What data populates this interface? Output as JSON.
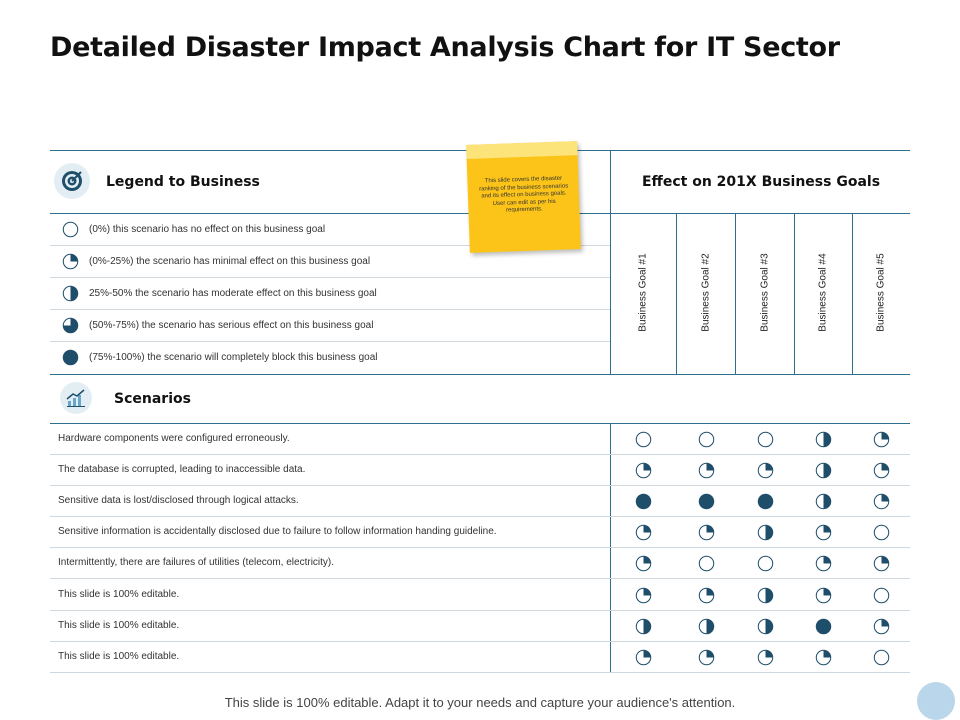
{
  "title": "Detailed Disaster Impact Analysis Chart for IT Sector",
  "legend": {
    "title": "Legend to Business",
    "icon": "target-icon",
    "items": [
      {
        "level": 0,
        "text": "(0%) this scenario has no effect on this business goal"
      },
      {
        "level": 0.25,
        "text": "(0%-25%) the scenario has minimal effect on this business goal"
      },
      {
        "level": 0.5,
        "text": "25%-50% the scenario has moderate effect on this business goal"
      },
      {
        "level": 0.75,
        "text": "(50%-75%) the scenario has serious effect on this business goal"
      },
      {
        "level": 1,
        "text": "(75%-100%) the scenario will completely block this business goal"
      }
    ]
  },
  "effect": {
    "title": "Effect on 201X Business Goals",
    "goals": [
      "Business Goal #1",
      "Business Goal #2",
      "Business Goal #3",
      "Business Goal #4",
      "Business Goal #5"
    ]
  },
  "scenarios": {
    "title": "Scenarios",
    "icon": "growth-chart-icon",
    "rows": [
      {
        "text": "Hardware components were configured erroneously.",
        "levels": [
          0,
          0,
          0,
          0.5,
          0.25
        ]
      },
      {
        "text": "The database is corrupted, leading to inaccessible data.",
        "levels": [
          0.25,
          0.25,
          0.25,
          0.5,
          0.25
        ]
      },
      {
        "text": "Sensitive data is lost/disclosed through logical attacks.",
        "levels": [
          1,
          1,
          1,
          0.5,
          0.25
        ]
      },
      {
        "text": "Sensitive information is accidentally disclosed due to failure to follow information handing guideline.",
        "levels": [
          0.25,
          0.25,
          0.5,
          0.25,
          0
        ]
      },
      {
        "text": "Intermittently, there are failures of utilities (telecom, electricity).",
        "levels": [
          0.25,
          0,
          0,
          0.25,
          0.25
        ]
      },
      {
        "text": "This slide is 100% editable.",
        "levels": [
          0.25,
          0.25,
          0.5,
          0.25,
          0
        ]
      },
      {
        "text": "This slide is 100% editable.",
        "levels": [
          0.5,
          0.5,
          0.5,
          1,
          0.25
        ]
      },
      {
        "text": "This slide is 100% editable.",
        "levels": [
          0.25,
          0.25,
          0.25,
          0.25,
          0
        ]
      }
    ]
  },
  "sticky_note": "This slide covers the disaster ranking of the business scenarios and its effect on business goals. User can edit as per his requirements.",
  "footer": "This slide is 100% editable. Adapt it to your needs and capture your audience's attention.",
  "colors": {
    "accent": "#1f4e6b",
    "stroke": "#1f4e6b",
    "note": "#fcc419"
  }
}
